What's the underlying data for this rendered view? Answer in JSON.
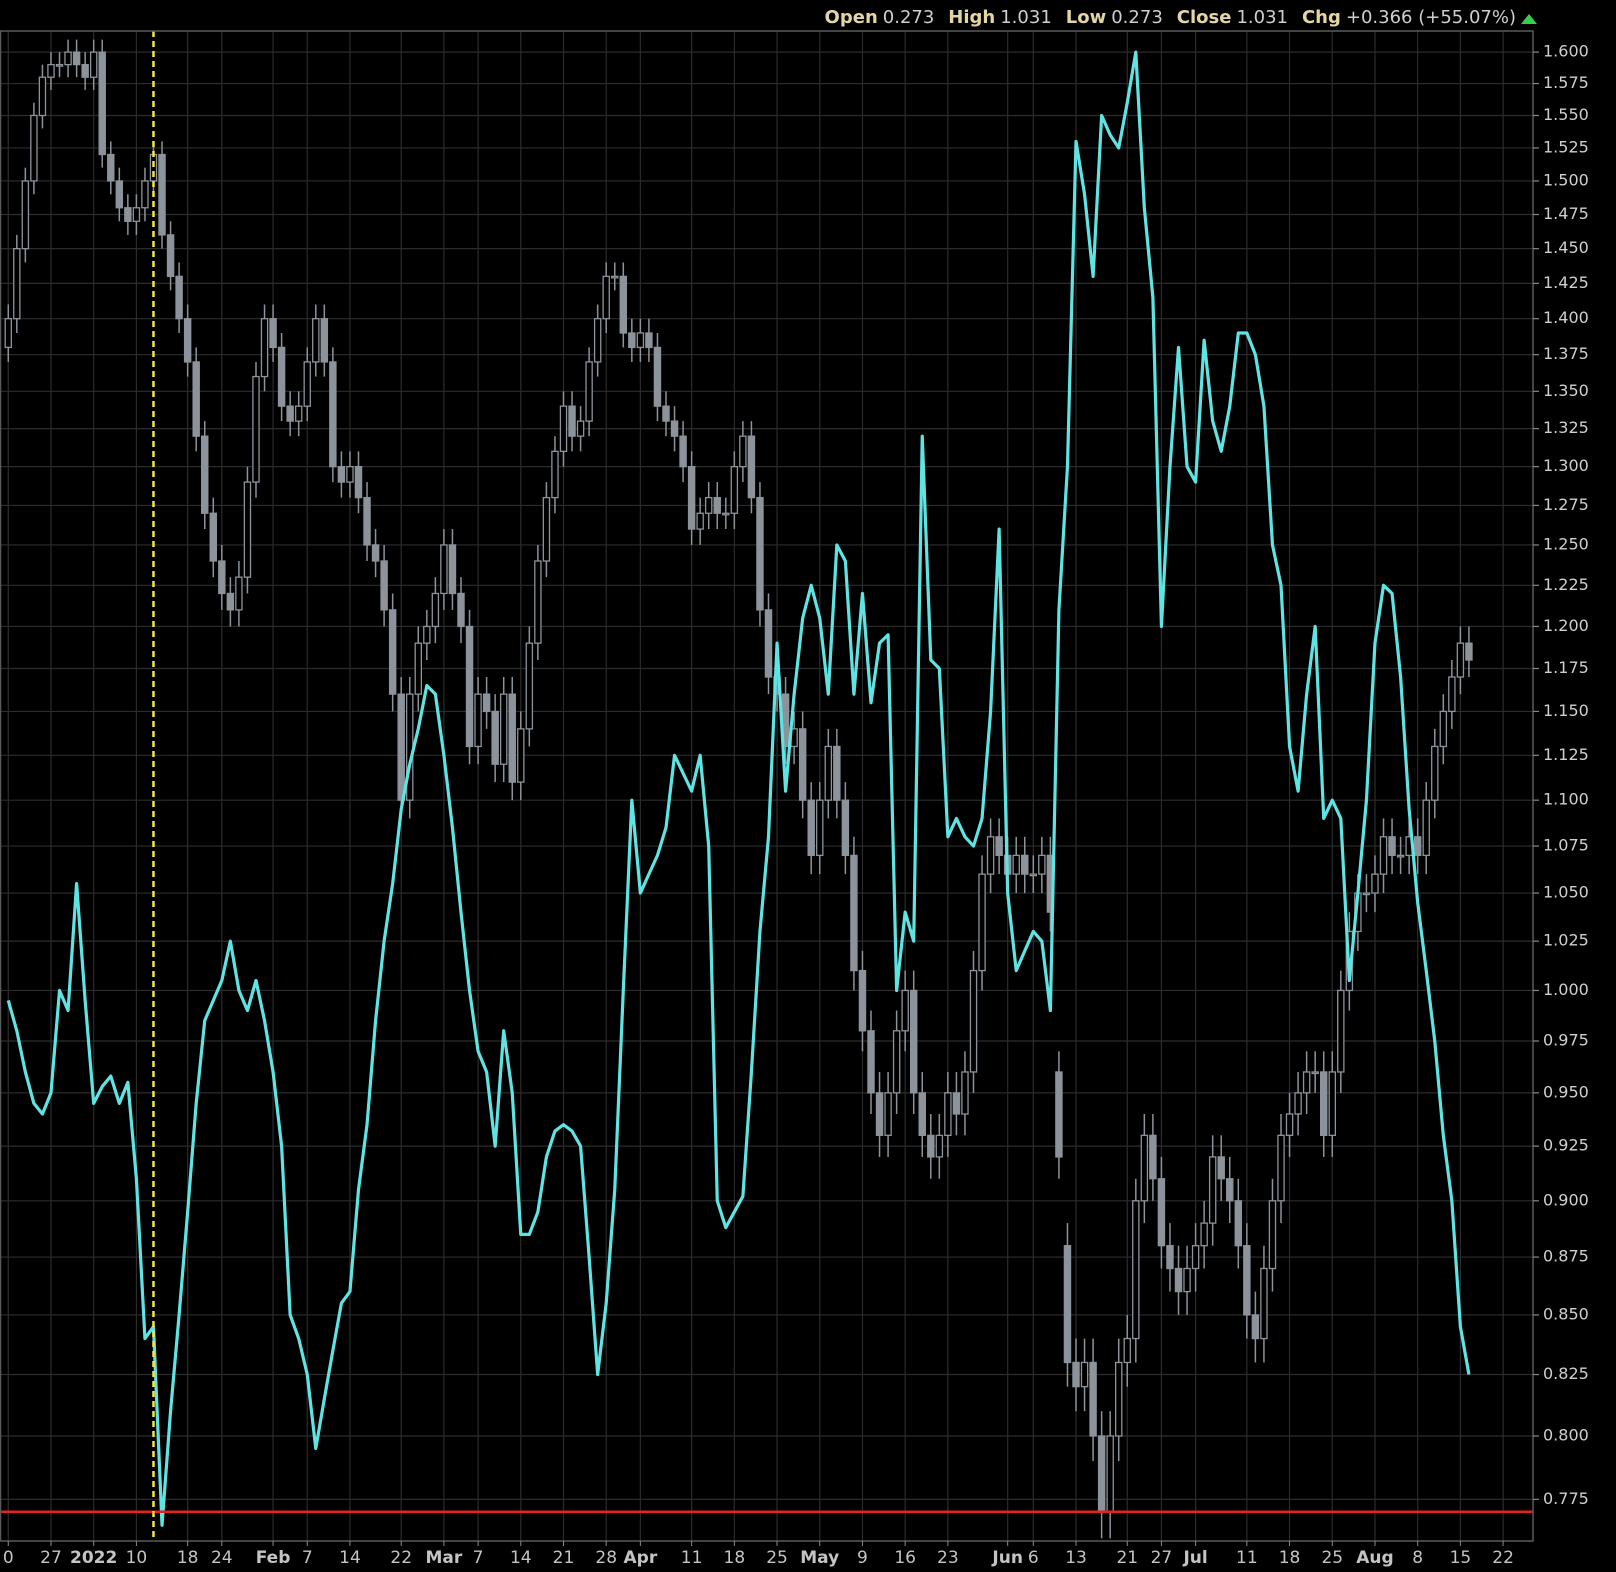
{
  "chart_data": {
    "type": "candlestick",
    "info": [
      {
        "label": "Open",
        "value": "0.273"
      },
      {
        "label": "High",
        "value": "1.031"
      },
      {
        "label": "Low",
        "value": "0.273"
      },
      {
        "label": "Close",
        "value": "1.031"
      },
      {
        "label": "Chg",
        "value": "+0.366 (+55.07%)"
      }
    ],
    "categories": [
      "0",
      null,
      null,
      null,
      null,
      "27",
      null,
      null,
      null,
      null,
      "2022",
      null,
      null,
      null,
      null,
      "10",
      null,
      null,
      null,
      null,
      null,
      "18",
      null,
      null,
      null,
      "24",
      null,
      null,
      null,
      null,
      null,
      "Feb",
      null,
      null,
      null,
      "7",
      null,
      null,
      null,
      null,
      "14",
      null,
      null,
      null,
      null,
      null,
      "22",
      null,
      null,
      null,
      null,
      "Mar",
      null,
      null,
      null,
      "7",
      null,
      null,
      null,
      null,
      "14",
      null,
      null,
      null,
      null,
      "21",
      null,
      null,
      null,
      null,
      "28",
      null,
      null,
      null,
      "Apr",
      null,
      null,
      null,
      null,
      null,
      "11",
      null,
      null,
      null,
      null,
      "18",
      null,
      null,
      null,
      null,
      "25",
      null,
      null,
      null,
      null,
      "May",
      null,
      null,
      null,
      null,
      "9",
      null,
      null,
      null,
      null,
      "16",
      null,
      null,
      null,
      null,
      "23",
      null,
      null,
      null,
      null,
      null,
      null,
      "Jun",
      null,
      null,
      "6",
      null,
      null,
      null,
      null,
      "13",
      null,
      null,
      null,
      null,
      null,
      "21",
      null,
      null,
      null,
      "27",
      null,
      null,
      null,
      "Jul",
      null,
      null,
      null,
      null,
      null,
      "11",
      null,
      null,
      null,
      null,
      "18",
      null,
      null,
      null,
      null,
      "25",
      null,
      null,
      null,
      null,
      "Aug",
      null,
      null,
      null,
      null,
      "8",
      null,
      null,
      null,
      null,
      "15",
      null,
      null,
      null,
      null,
      "22",
      null,
      null,
      null
    ],
    "candles": {
      "color": "#8c939b",
      "open": [
        1.38,
        1.4,
        1.45,
        1.5,
        1.55,
        1.58,
        1.59,
        1.59,
        1.6,
        1.59,
        1.58,
        1.6,
        1.52,
        1.5,
        1.48,
        1.47,
        1.48,
        1.5,
        1.52,
        1.46,
        1.43,
        1.4,
        1.37,
        1.32,
        1.27,
        1.24,
        1.22,
        1.21,
        1.23,
        1.29,
        1.36,
        1.4,
        1.38,
        1.34,
        1.33,
        1.34,
        1.37,
        1.4,
        1.37,
        1.3,
        1.29,
        1.3,
        1.28,
        1.25,
        1.24,
        1.21,
        1.16,
        1.1,
        1.16,
        1.19,
        1.2,
        1.22,
        1.25,
        1.22,
        1.2,
        1.13,
        1.16,
        1.15,
        1.12,
        1.16,
        1.11,
        1.14,
        1.19,
        1.24,
        1.28,
        1.31,
        1.34,
        1.32,
        1.33,
        1.37,
        1.4,
        1.43,
        1.43,
        1.39,
        1.38,
        1.39,
        1.38,
        1.34,
        1.33,
        1.32,
        1.3,
        1.26,
        1.27,
        1.28,
        1.27,
        1.27,
        1.3,
        1.32,
        1.28,
        1.21,
        1.17,
        1.16,
        1.13,
        1.14,
        1.1,
        1.07,
        1.1,
        1.13,
        1.1,
        1.07,
        1.01,
        0.98,
        0.95,
        0.93,
        0.95,
        0.98,
        1.0,
        0.95,
        0.93,
        0.92,
        0.93,
        0.95,
        0.94,
        0.96,
        1.01,
        1.06,
        1.08,
        1.07,
        1.06,
        1.07,
        1.06,
        1.06,
        1.07,
        0.96,
        0.88,
        0.83,
        0.82,
        0.83,
        0.8,
        0.77,
        0.8,
        0.83,
        0.84,
        0.9,
        0.93,
        0.91,
        0.88,
        0.87,
        0.86,
        0.87,
        0.88,
        0.89,
        0.92,
        0.91,
        0.9,
        0.88,
        0.85,
        0.84,
        0.87,
        0.9,
        0.93,
        0.94,
        0.95,
        0.96,
        0.96,
        0.93,
        0.96,
        1.0,
        1.03,
        1.05,
        1.05,
        1.06,
        1.08,
        1.07,
        1.07,
        1.08,
        1.07,
        1.1,
        1.13,
        1.15,
        1.17,
        1.19,
        null,
        null,
        null,
        null,
        null,
        null,
        null
      ],
      "high": [
        1.41,
        1.46,
        1.51,
        1.56,
        1.59,
        1.6,
        1.6,
        1.61,
        1.61,
        1.6,
        1.61,
        1.61,
        1.53,
        1.51,
        1.49,
        1.49,
        1.51,
        1.53,
        1.53,
        1.47,
        1.44,
        1.41,
        1.38,
        1.33,
        1.28,
        1.25,
        1.23,
        1.24,
        1.3,
        1.37,
        1.41,
        1.41,
        1.39,
        1.35,
        1.35,
        1.38,
        1.41,
        1.41,
        1.38,
        1.31,
        1.31,
        1.31,
        1.29,
        1.26,
        1.25,
        1.22,
        1.17,
        1.17,
        1.2,
        1.21,
        1.23,
        1.26,
        1.26,
        1.23,
        1.21,
        1.17,
        1.17,
        1.16,
        1.17,
        1.17,
        1.15,
        1.2,
        1.25,
        1.29,
        1.32,
        1.35,
        1.35,
        1.34,
        1.38,
        1.41,
        1.44,
        1.44,
        1.44,
        1.4,
        1.4,
        1.4,
        1.39,
        1.35,
        1.34,
        1.33,
        1.31,
        1.28,
        1.29,
        1.29,
        1.28,
        1.31,
        1.33,
        1.33,
        1.29,
        1.22,
        1.18,
        1.17,
        1.15,
        1.15,
        1.11,
        1.11,
        1.14,
        1.14,
        1.11,
        1.08,
        1.02,
        0.99,
        0.96,
        0.96,
        0.99,
        1.01,
        1.01,
        0.96,
        0.94,
        0.94,
        0.96,
        0.96,
        0.97,
        1.02,
        1.07,
        1.09,
        1.09,
        1.08,
        1.08,
        1.08,
        1.07,
        1.08,
        1.08,
        0.97,
        0.89,
        0.84,
        0.84,
        0.84,
        0.81,
        0.81,
        0.84,
        0.85,
        0.91,
        0.94,
        0.94,
        0.92,
        0.89,
        0.88,
        0.88,
        0.89,
        0.9,
        0.93,
        0.93,
        0.92,
        0.91,
        0.89,
        0.86,
        0.88,
        0.91,
        0.94,
        0.95,
        0.96,
        0.97,
        0.97,
        0.97,
        0.97,
        1.01,
        1.04,
        1.06,
        1.06,
        1.07,
        1.09,
        1.09,
        1.08,
        1.09,
        1.09,
        1.11,
        1.14,
        1.16,
        1.18,
        1.2,
        1.2,
        null,
        null,
        null,
        null,
        null,
        null,
        null
      ],
      "low": [
        1.37,
        1.39,
        1.44,
        1.49,
        1.54,
        1.57,
        1.58,
        1.58,
        1.58,
        1.57,
        1.57,
        1.51,
        1.49,
        1.47,
        1.46,
        1.46,
        1.47,
        1.49,
        1.45,
        1.42,
        1.39,
        1.36,
        1.31,
        1.26,
        1.23,
        1.21,
        1.2,
        1.2,
        1.22,
        1.28,
        1.35,
        1.37,
        1.33,
        1.32,
        1.32,
        1.33,
        1.36,
        1.36,
        1.29,
        1.28,
        1.28,
        1.27,
        1.24,
        1.23,
        1.2,
        1.15,
        1.09,
        1.09,
        1.15,
        1.18,
        1.19,
        1.21,
        1.21,
        1.19,
        1.12,
        1.12,
        1.14,
        1.11,
        1.11,
        1.1,
        1.1,
        1.13,
        1.18,
        1.23,
        1.27,
        1.3,
        1.31,
        1.31,
        1.32,
        1.36,
        1.39,
        1.42,
        1.38,
        1.37,
        1.37,
        1.37,
        1.33,
        1.32,
        1.31,
        1.29,
        1.25,
        1.25,
        1.26,
        1.26,
        1.26,
        1.26,
        1.29,
        1.27,
        1.2,
        1.16,
        1.15,
        1.12,
        1.12,
        1.09,
        1.06,
        1.06,
        1.09,
        1.09,
        1.06,
        1.0,
        0.97,
        0.94,
        0.92,
        0.92,
        0.94,
        0.97,
        0.94,
        0.92,
        0.91,
        0.91,
        0.92,
        0.93,
        0.93,
        0.95,
        1.0,
        1.05,
        1.06,
        1.05,
        1.05,
        1.05,
        1.05,
        1.05,
        1.03,
        0.91,
        0.82,
        0.81,
        0.81,
        0.79,
        0.76,
        0.76,
        0.79,
        0.82,
        0.83,
        0.89,
        0.9,
        0.87,
        0.86,
        0.85,
        0.85,
        0.86,
        0.87,
        0.88,
        0.9,
        0.89,
        0.87,
        0.84,
        0.83,
        0.83,
        0.86,
        0.89,
        0.92,
        0.93,
        0.94,
        0.95,
        0.92,
        0.92,
        0.95,
        0.99,
        1.02,
        1.04,
        1.04,
        1.05,
        1.06,
        1.06,
        1.06,
        1.06,
        1.06,
        1.09,
        1.12,
        1.14,
        1.16,
        1.17,
        null,
        null,
        null,
        null,
        null,
        null,
        null
      ],
      "close": [
        1.4,
        1.45,
        1.5,
        1.55,
        1.58,
        1.59,
        1.59,
        1.6,
        1.59,
        1.58,
        1.6,
        1.52,
        1.5,
        1.48,
        1.47,
        1.48,
        1.5,
        1.52,
        1.46,
        1.43,
        1.4,
        1.37,
        1.32,
        1.27,
        1.24,
        1.22,
        1.21,
        1.23,
        1.29,
        1.36,
        1.4,
        1.38,
        1.34,
        1.33,
        1.34,
        1.37,
        1.4,
        1.37,
        1.3,
        1.29,
        1.3,
        1.28,
        1.25,
        1.24,
        1.21,
        1.16,
        1.1,
        1.16,
        1.19,
        1.2,
        1.22,
        1.25,
        1.22,
        1.2,
        1.13,
        1.16,
        1.15,
        1.12,
        1.16,
        1.11,
        1.14,
        1.19,
        1.24,
        1.28,
        1.31,
        1.34,
        1.32,
        1.33,
        1.37,
        1.4,
        1.43,
        1.43,
        1.39,
        1.38,
        1.39,
        1.38,
        1.34,
        1.33,
        1.32,
        1.3,
        1.26,
        1.27,
        1.28,
        1.27,
        1.27,
        1.3,
        1.32,
        1.28,
        1.21,
        1.17,
        1.16,
        1.13,
        1.14,
        1.1,
        1.07,
        1.1,
        1.13,
        1.1,
        1.07,
        1.01,
        0.98,
        0.95,
        0.93,
        0.95,
        0.98,
        1.0,
        0.95,
        0.93,
        0.92,
        0.93,
        0.95,
        0.94,
        0.96,
        1.01,
        1.06,
        1.08,
        1.07,
        1.06,
        1.07,
        1.06,
        1.06,
        1.07,
        1.04,
        0.92,
        0.83,
        0.82,
        0.83,
        0.8,
        0.77,
        0.8,
        0.83,
        0.84,
        0.9,
        0.93,
        0.91,
        0.88,
        0.87,
        0.86,
        0.87,
        0.88,
        0.89,
        0.92,
        0.91,
        0.9,
        0.88,
        0.85,
        0.84,
        0.87,
        0.9,
        0.93,
        0.94,
        0.95,
        0.96,
        0.96,
        0.93,
        0.96,
        1.0,
        1.03,
        1.05,
        1.05,
        1.06,
        1.08,
        1.07,
        1.07,
        1.08,
        1.07,
        1.1,
        1.13,
        1.15,
        1.17,
        1.19,
        1.18,
        null,
        null,
        null,
        null,
        null,
        null,
        null
      ]
    },
    "line": {
      "color": "#5fe3e3",
      "values": [
        0.995,
        0.98,
        0.96,
        0.945,
        0.94,
        0.95,
        1.0,
        0.99,
        1.055,
        0.995,
        0.945,
        0.953,
        0.958,
        0.945,
        0.955,
        0.91,
        0.84,
        0.845,
        0.765,
        0.81,
        0.85,
        0.895,
        0.945,
        0.985,
        0.995,
        1.005,
        1.025,
        1.0,
        0.99,
        1.005,
        0.985,
        0.96,
        0.925,
        0.85,
        0.84,
        0.825,
        0.795,
        0.815,
        0.835,
        0.855,
        0.86,
        0.905,
        0.935,
        0.985,
        1.025,
        1.055,
        1.095,
        1.12,
        1.14,
        1.165,
        1.16,
        1.125,
        1.085,
        1.04,
        1.0,
        0.97,
        0.96,
        0.925,
        0.98,
        0.95,
        0.885,
        0.885,
        0.895,
        0.92,
        0.932,
        0.935,
        0.932,
        0.925,
        0.875,
        0.825,
        0.855,
        0.905,
        1.0,
        1.1,
        1.05,
        1.06,
        1.07,
        1.085,
        1.125,
        1.115,
        1.105,
        1.125,
        1.075,
        0.9,
        0.888,
        0.895,
        0.902,
        0.96,
        1.03,
        1.08,
        1.19,
        1.105,
        1.16,
        1.205,
        1.225,
        1.205,
        1.16,
        1.25,
        1.24,
        1.16,
        1.22,
        1.155,
        1.19,
        1.195,
        1.0,
        1.04,
        1.025,
        1.32,
        1.18,
        1.175,
        1.08,
        1.09,
        1.08,
        1.075,
        1.09,
        1.15,
        1.26,
        1.05,
        1.01,
        1.02,
        1.03,
        1.025,
        0.99,
        1.21,
        1.3,
        1.53,
        1.49,
        1.43,
        1.55,
        1.535,
        1.525,
        1.56,
        1.6,
        1.48,
        1.415,
        1.2,
        1.3,
        1.38,
        1.3,
        1.29,
        1.385,
        1.33,
        1.31,
        1.34,
        1.39,
        1.39,
        1.375,
        1.34,
        1.25,
        1.225,
        1.13,
        1.105,
        1.16,
        1.2,
        1.09,
        1.1,
        1.09,
        1.005,
        1.05,
        1.1,
        1.19,
        1.225,
        1.22,
        1.17,
        1.095,
        1.045,
        1.01,
        0.975,
        0.93,
        0.9,
        0.845,
        0.825,
        null,
        null,
        null,
        null,
        null,
        null,
        null
      ]
    },
    "log": true,
    "ylim": [
      0.759,
      1.617
    ],
    "yticks": [
      0.775,
      {
        "value": 0.8,
        "label": "0.800"
      },
      0.825,
      {
        "value": 0.85,
        "label": "0.850"
      },
      0.875,
      {
        "value": 0.9,
        "label": "0.900"
      },
      0.925,
      {
        "value": 0.95,
        "label": "0.950"
      },
      0.975,
      {
        "value": 1,
        "label": "1.000"
      },
      1.025,
      {
        "value": 1.05,
        "label": "1.050"
      },
      1.075,
      {
        "value": 1.1,
        "label": "1.100"
      },
      1.125,
      {
        "value": 1.15,
        "label": "1.150"
      },
      1.175,
      {
        "value": 1.2,
        "label": "1.200"
      },
      1.225,
      {
        "value": 1.25,
        "label": "1.250"
      },
      1.275,
      {
        "value": 1.3,
        "label": "1.300"
      },
      1.325,
      {
        "value": 1.35,
        "label": "1.350"
      },
      1.375,
      {
        "value": 1.4,
        "label": "1.400"
      },
      1.425,
      {
        "value": 1.45,
        "label": "1.450"
      },
      1.475,
      {
        "value": 1.5,
        "label": "1.500"
      },
      1.525,
      {
        "value": 1.55,
        "label": "1.550"
      },
      1.575,
      {
        "value": 1.6,
        "label": "1.600"
      }
    ],
    "grid": true,
    "reference_line": {
      "value": 0.7702,
      "color": "#e52222"
    },
    "highlight_category": 17,
    "highlight_color": "#f4e542"
  }
}
